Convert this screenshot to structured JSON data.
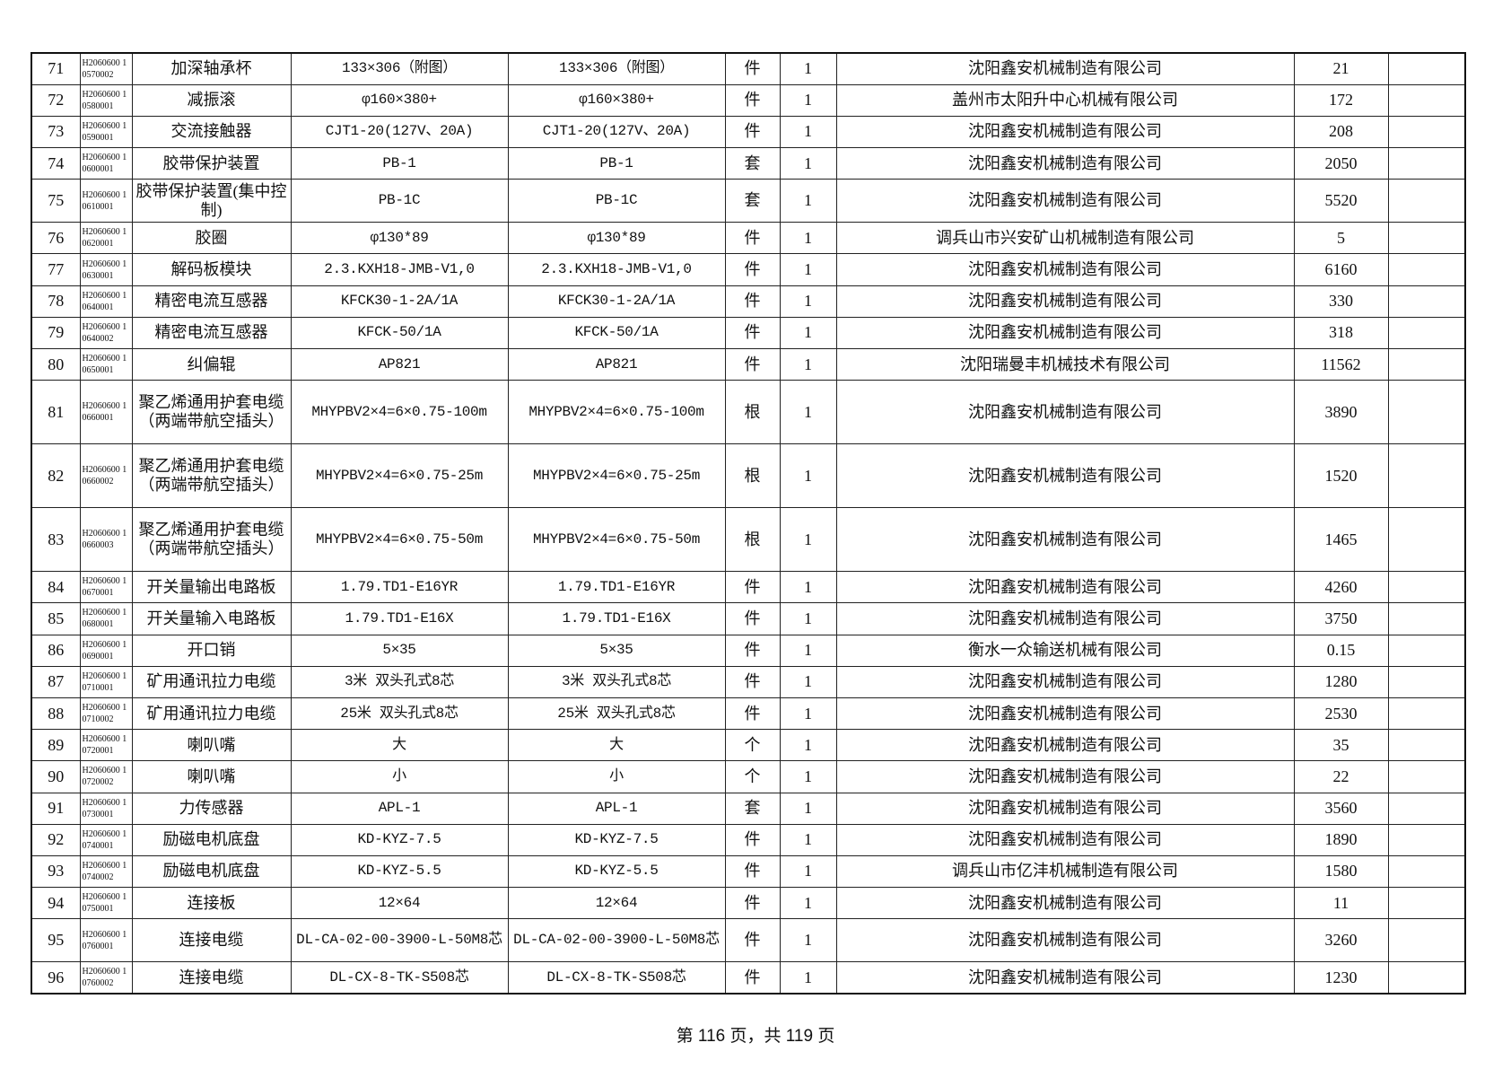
{
  "rows": [
    {
      "no": "71",
      "code": "H2060600 10570002",
      "name": "加深轴承杯",
      "spec1": "133×306（附图）",
      "spec2": "133×306（附图）",
      "unit": "件",
      "qty": "1",
      "supplier": "沈阳鑫安机械制造有限公司",
      "price": "21",
      "remark": "",
      "lines": 1
    },
    {
      "no": "72",
      "code": "H2060600 10580001",
      "name": "减振滚",
      "spec1": "φ160×380+",
      "spec2": "φ160×380+",
      "unit": "件",
      "qty": "1",
      "supplier": "盖州市太阳升中心机械有限公司",
      "price": "172",
      "remark": "",
      "lines": 1
    },
    {
      "no": "73",
      "code": "H2060600 10590001",
      "name": "交流接触器",
      "spec1": "CJT1-20(127V、20A)",
      "spec2": "CJT1-20(127V、20A)",
      "unit": "件",
      "qty": "1",
      "supplier": "沈阳鑫安机械制造有限公司",
      "price": "208",
      "remark": "",
      "lines": 1
    },
    {
      "no": "74",
      "code": "H2060600 10600001",
      "name": "胶带保护装置",
      "spec1": "PB-1",
      "spec2": "PB-1",
      "unit": "套",
      "qty": "1",
      "supplier": "沈阳鑫安机械制造有限公司",
      "price": "2050",
      "remark": "",
      "lines": 1
    },
    {
      "no": "75",
      "code": "H2060600 10610001",
      "name": "胶带保护装置(集中控制)",
      "spec1": "PB-1C",
      "spec2": "PB-1C",
      "unit": "套",
      "qty": "1",
      "supplier": "沈阳鑫安机械制造有限公司",
      "price": "5520",
      "remark": "",
      "lines": 2
    },
    {
      "no": "76",
      "code": "H2060600 10620001",
      "name": "胶圈",
      "spec1": "φ130*89",
      "spec2": "φ130*89",
      "unit": "件",
      "qty": "1",
      "supplier": "调兵山市兴安矿山机械制造有限公司",
      "price": "5",
      "remark": "",
      "lines": 1
    },
    {
      "no": "77",
      "code": "H2060600 10630001",
      "name": "解码板模块",
      "spec1": "2.3.KXH18-JMB-V1,0",
      "spec2": "2.3.KXH18-JMB-V1,0",
      "unit": "件",
      "qty": "1",
      "supplier": "沈阳鑫安机械制造有限公司",
      "price": "6160",
      "remark": "",
      "lines": 1
    },
    {
      "no": "78",
      "code": "H2060600 10640001",
      "name": "精密电流互感器",
      "spec1": "KFCK30-1-2A/1A",
      "spec2": "KFCK30-1-2A/1A",
      "unit": "件",
      "qty": "1",
      "supplier": "沈阳鑫安机械制造有限公司",
      "price": "330",
      "remark": "",
      "lines": 1
    },
    {
      "no": "79",
      "code": "H2060600 10640002",
      "name": "精密电流互感器",
      "spec1": "KFCK-50/1A",
      "spec2": "KFCK-50/1A",
      "unit": "件",
      "qty": "1",
      "supplier": "沈阳鑫安机械制造有限公司",
      "price": "318",
      "remark": "",
      "lines": 1
    },
    {
      "no": "80",
      "code": "H2060600 10650001",
      "name": "纠偏辊",
      "spec1": "AP821",
      "spec2": "AP821",
      "unit": "件",
      "qty": "1",
      "supplier": "沈阳瑞曼丰机械技术有限公司",
      "price": "11562",
      "remark": "",
      "lines": 1
    },
    {
      "no": "81",
      "code": "H2060600 10660001",
      "name": "聚乙烯通用护套电缆（两端带航空插头）",
      "spec1": "MHYPBV2×4=6×0.75-100m",
      "spec2": "MHYPBV2×4=6×0.75-100m",
      "unit": "根",
      "qty": "1",
      "supplier": "沈阳鑫安机械制造有限公司",
      "price": "3890",
      "remark": "",
      "lines": 3
    },
    {
      "no": "82",
      "code": "H2060600 10660002",
      "name": "聚乙烯通用护套电缆（两端带航空插头）",
      "spec1": "MHYPBV2×4=6×0.75-25m",
      "spec2": "MHYPBV2×4=6×0.75-25m",
      "unit": "根",
      "qty": "1",
      "supplier": "沈阳鑫安机械制造有限公司",
      "price": "1520",
      "remark": "",
      "lines": 3
    },
    {
      "no": "83",
      "code": "H2060600 10660003",
      "name": "聚乙烯通用护套电缆（两端带航空插头）",
      "spec1": "MHYPBV2×4=6×0.75-50m",
      "spec2": "MHYPBV2×4=6×0.75-50m",
      "unit": "根",
      "qty": "1",
      "supplier": "沈阳鑫安机械制造有限公司",
      "price": "1465",
      "remark": "",
      "lines": 3
    },
    {
      "no": "84",
      "code": "H2060600 10670001",
      "name": "开关量输出电路板",
      "spec1": "1.79.TD1-E16YR",
      "spec2": "1.79.TD1-E16YR",
      "unit": "件",
      "qty": "1",
      "supplier": "沈阳鑫安机械制造有限公司",
      "price": "4260",
      "remark": "",
      "lines": 1
    },
    {
      "no": "85",
      "code": "H2060600 10680001",
      "name": "开关量输入电路板",
      "spec1": "1.79.TD1-E16X",
      "spec2": "1.79.TD1-E16X",
      "unit": "件",
      "qty": "1",
      "supplier": "沈阳鑫安机械制造有限公司",
      "price": "3750",
      "remark": "",
      "lines": 1
    },
    {
      "no": "86",
      "code": "H2060600 10690001",
      "name": "开口销",
      "spec1": "5×35",
      "spec2": "5×35",
      "unit": "件",
      "qty": "1",
      "supplier": "衡水一众输送机械有限公司",
      "price": "0.15",
      "remark": "",
      "lines": 1
    },
    {
      "no": "87",
      "code": "H2060600 10710001",
      "name": "矿用通讯拉力电缆",
      "spec1": "3米 双头孔式8芯",
      "spec2": "3米 双头孔式8芯",
      "unit": "件",
      "qty": "1",
      "supplier": "沈阳鑫安机械制造有限公司",
      "price": "1280",
      "remark": "",
      "lines": 1
    },
    {
      "no": "88",
      "code": "H2060600 10710002",
      "name": "矿用通讯拉力电缆",
      "spec1": "25米 双头孔式8芯",
      "spec2": "25米 双头孔式8芯",
      "unit": "件",
      "qty": "1",
      "supplier": "沈阳鑫安机械制造有限公司",
      "price": "2530",
      "remark": "",
      "lines": 1
    },
    {
      "no": "89",
      "code": "H2060600 10720001",
      "name": "喇叭嘴",
      "spec1": "大",
      "spec2": "大",
      "unit": "个",
      "qty": "1",
      "supplier": "沈阳鑫安机械制造有限公司",
      "price": "35",
      "remark": "",
      "lines": 1
    },
    {
      "no": "90",
      "code": "H2060600 10720002",
      "name": "喇叭嘴",
      "spec1": "小",
      "spec2": "小",
      "unit": "个",
      "qty": "1",
      "supplier": "沈阳鑫安机械制造有限公司",
      "price": "22",
      "remark": "",
      "lines": 1
    },
    {
      "no": "91",
      "code": "H2060600 10730001",
      "name": "力传感器",
      "spec1": "APL-1",
      "spec2": "APL-1",
      "unit": "套",
      "qty": "1",
      "supplier": "沈阳鑫安机械制造有限公司",
      "price": "3560",
      "remark": "",
      "lines": 1
    },
    {
      "no": "92",
      "code": "H2060600 10740001",
      "name": "励磁电机底盘",
      "spec1": "KD-KYZ-7.5",
      "spec2": "KD-KYZ-7.5",
      "unit": "件",
      "qty": "1",
      "supplier": "沈阳鑫安机械制造有限公司",
      "price": "1890",
      "remark": "",
      "lines": 1
    },
    {
      "no": "93",
      "code": "H2060600 10740002",
      "name": "励磁电机底盘",
      "spec1": "KD-KYZ-5.5",
      "spec2": "KD-KYZ-5.5",
      "unit": "件",
      "qty": "1",
      "supplier": "调兵山市亿沣机械制造有限公司",
      "price": "1580",
      "remark": "",
      "lines": 1
    },
    {
      "no": "94",
      "code": "H2060600 10750001",
      "name": "连接板",
      "spec1": "12×64",
      "spec2": "12×64",
      "unit": "件",
      "qty": "1",
      "supplier": "沈阳鑫安机械制造有限公司",
      "price": "11",
      "remark": "",
      "lines": 1
    },
    {
      "no": "95",
      "code": "H2060600 10760001",
      "name": "连接电缆",
      "spec1": "DL-CA-02-00-3900-L-50M8芯",
      "spec2": "DL-CA-02-00-3900-L-50M8芯",
      "unit": "件",
      "qty": "1",
      "supplier": "沈阳鑫安机械制造有限公司",
      "price": "3260",
      "remark": "",
      "lines": 2
    },
    {
      "no": "96",
      "code": "H2060600 10760002",
      "name": "连接电缆",
      "spec1": "DL-CX-8-TK-S508芯",
      "spec2": "DL-CX-8-TK-S508芯",
      "unit": "件",
      "qty": "1",
      "supplier": "沈阳鑫安机械制造有限公司",
      "price": "1230",
      "remark": "",
      "lines": 1
    }
  ],
  "footer": {
    "text": "第 116 页，共 119 页"
  }
}
